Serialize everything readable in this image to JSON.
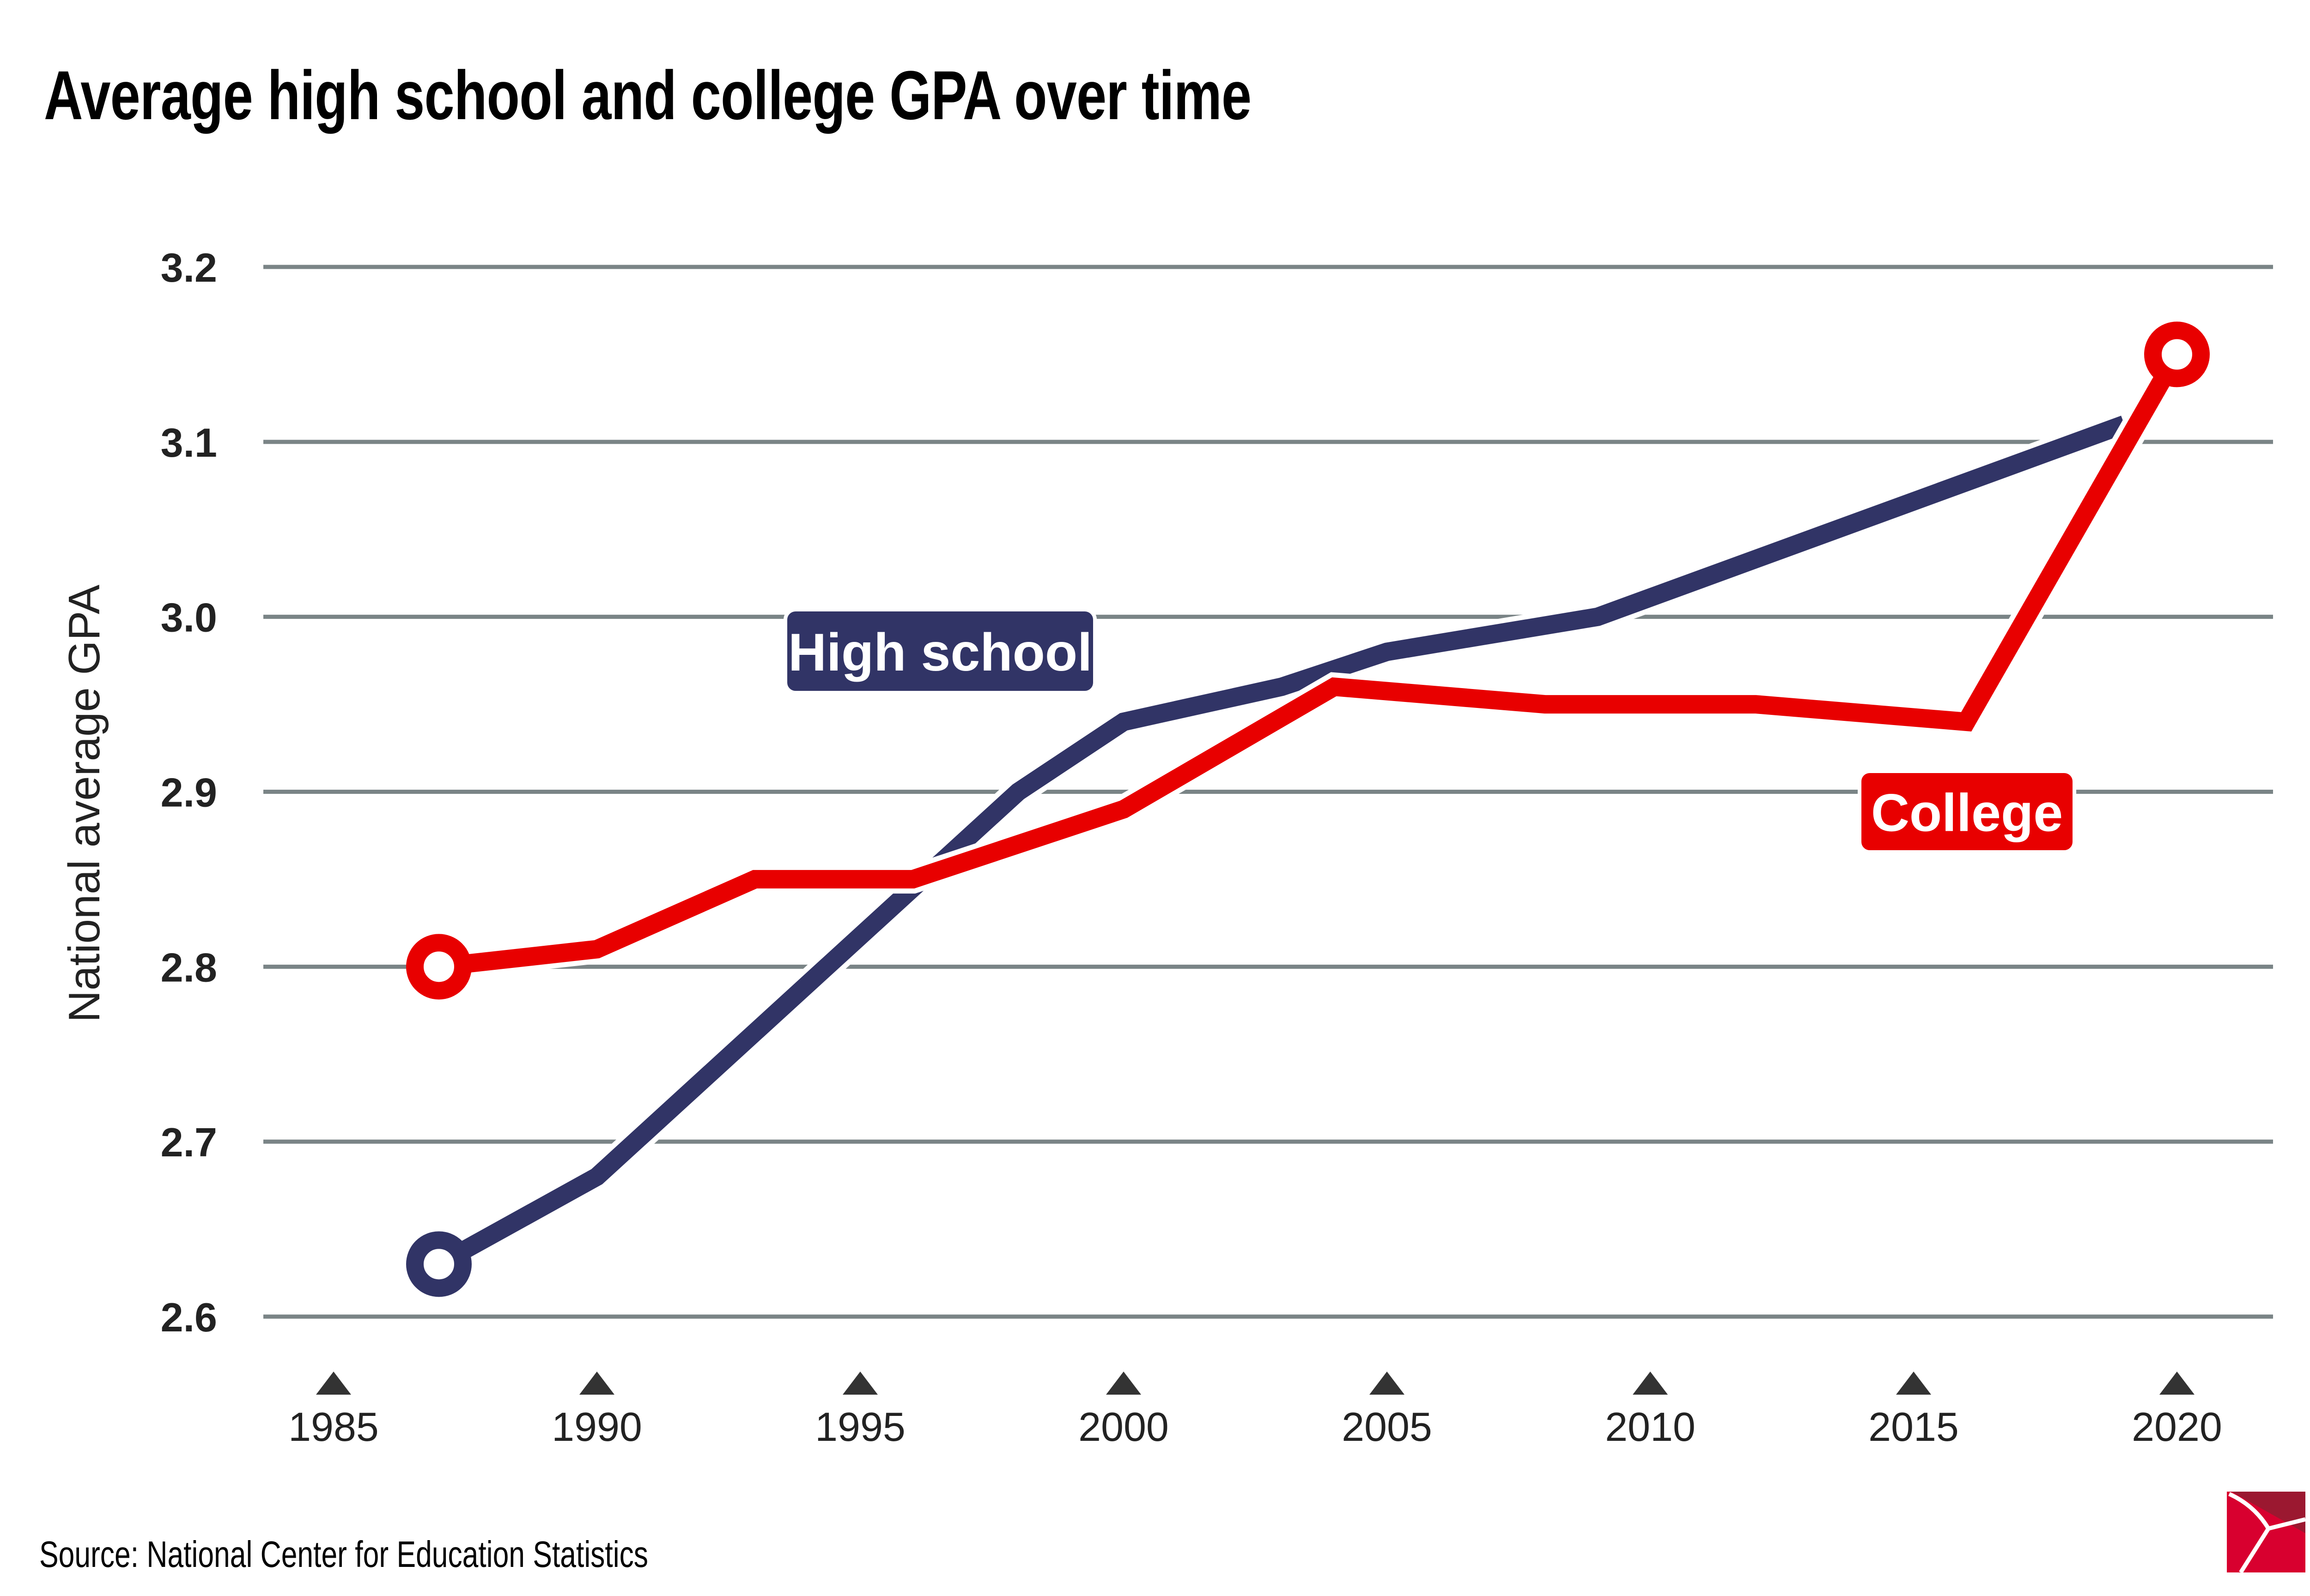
{
  "chart_data": {
    "type": "line",
    "title": "Average high school and college GPA over time",
    "xlabel": "",
    "ylabel": "National average GPA",
    "xlim": [
      1985,
      2020
    ],
    "ylim": [
      2.6,
      3.2
    ],
    "xticks": [
      1985,
      1990,
      1995,
      2000,
      2005,
      2010,
      2015,
      2020
    ],
    "xtick_labels": [
      "1985",
      "1990",
      "1995",
      "2000",
      "2005",
      "2010",
      "2015",
      "2020"
    ],
    "yticks": [
      2.6,
      2.7,
      2.8,
      2.9,
      3.0,
      3.1,
      3.2
    ],
    "ytick_labels": [
      "2.6",
      "2.7",
      "2.8",
      "2.9",
      "3.0",
      "3.1",
      "3.2"
    ],
    "grid": "horizontal",
    "series": [
      {
        "name": "High school",
        "label": "High school",
        "color": "#313466",
        "x": [
          1987,
          1990,
          1998,
          2000,
          2003,
          2005,
          2009,
          2019
        ],
        "values": [
          2.63,
          2.68,
          2.9,
          2.94,
          2.96,
          2.98,
          3.0,
          3.11
        ]
      },
      {
        "name": "College",
        "label": "College",
        "color": "#e80000",
        "x": [
          1987,
          1990,
          1993,
          1996,
          2000,
          2004,
          2008,
          2012,
          2016,
          2020
        ],
        "values": [
          2.8,
          2.81,
          2.85,
          2.85,
          2.89,
          2.96,
          2.95,
          2.95,
          2.94,
          3.15
        ]
      }
    ],
    "source": "Source: National Center for Education Statistics"
  },
  "colors": {
    "grid": "#7a8486",
    "tick_marker": "#333333",
    "logo_red": "#d8002f",
    "logo_dark": "#9b1830"
  }
}
